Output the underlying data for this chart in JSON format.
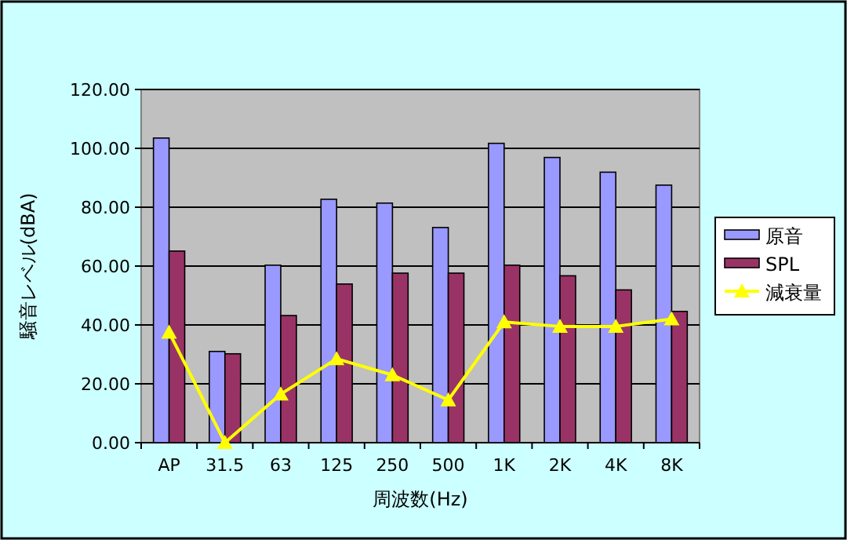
{
  "chart_data": {
    "type": "bar",
    "xlabel": "周波数(Hz)",
    "ylabel": "騒音レベル(dBA)",
    "categories": [
      "AP",
      "31.5",
      "63",
      "125",
      "250",
      "500",
      "1K",
      "2K",
      "4K",
      "8K"
    ],
    "series": [
      {
        "name": "原音",
        "color": "#9999ff",
        "values": [
          103.5,
          31,
          60.3,
          82.7,
          81.4,
          73.1,
          101.7,
          96.9,
          91.9,
          87.5
        ]
      },
      {
        "name": "SPL",
        "color": "#993366",
        "values": [
          65.1,
          30.2,
          43.2,
          53.9,
          57.6,
          57.6,
          60.3,
          56.7,
          51.9,
          44.6
        ]
      },
      {
        "name": "減衰量",
        "type": "line",
        "color": "#ffff00",
        "marker": "triangle",
        "values": [
          37.5,
          0,
          16.5,
          28.5,
          23,
          14.5,
          41,
          39.5,
          39.5,
          42
        ]
      }
    ],
    "ylim": [
      0,
      120
    ],
    "yticks": [
      {
        "value": 0,
        "label": "0.00"
      },
      {
        "value": 20,
        "label": "20.00"
      },
      {
        "value": 40,
        "label": "40.00"
      },
      {
        "value": 60,
        "label": "60.00"
      },
      {
        "value": 80,
        "label": "80.00"
      },
      {
        "value": 100,
        "label": "100.00"
      },
      {
        "value": 120,
        "label": "120.00"
      }
    ],
    "grid": "y",
    "legend": "right"
  }
}
